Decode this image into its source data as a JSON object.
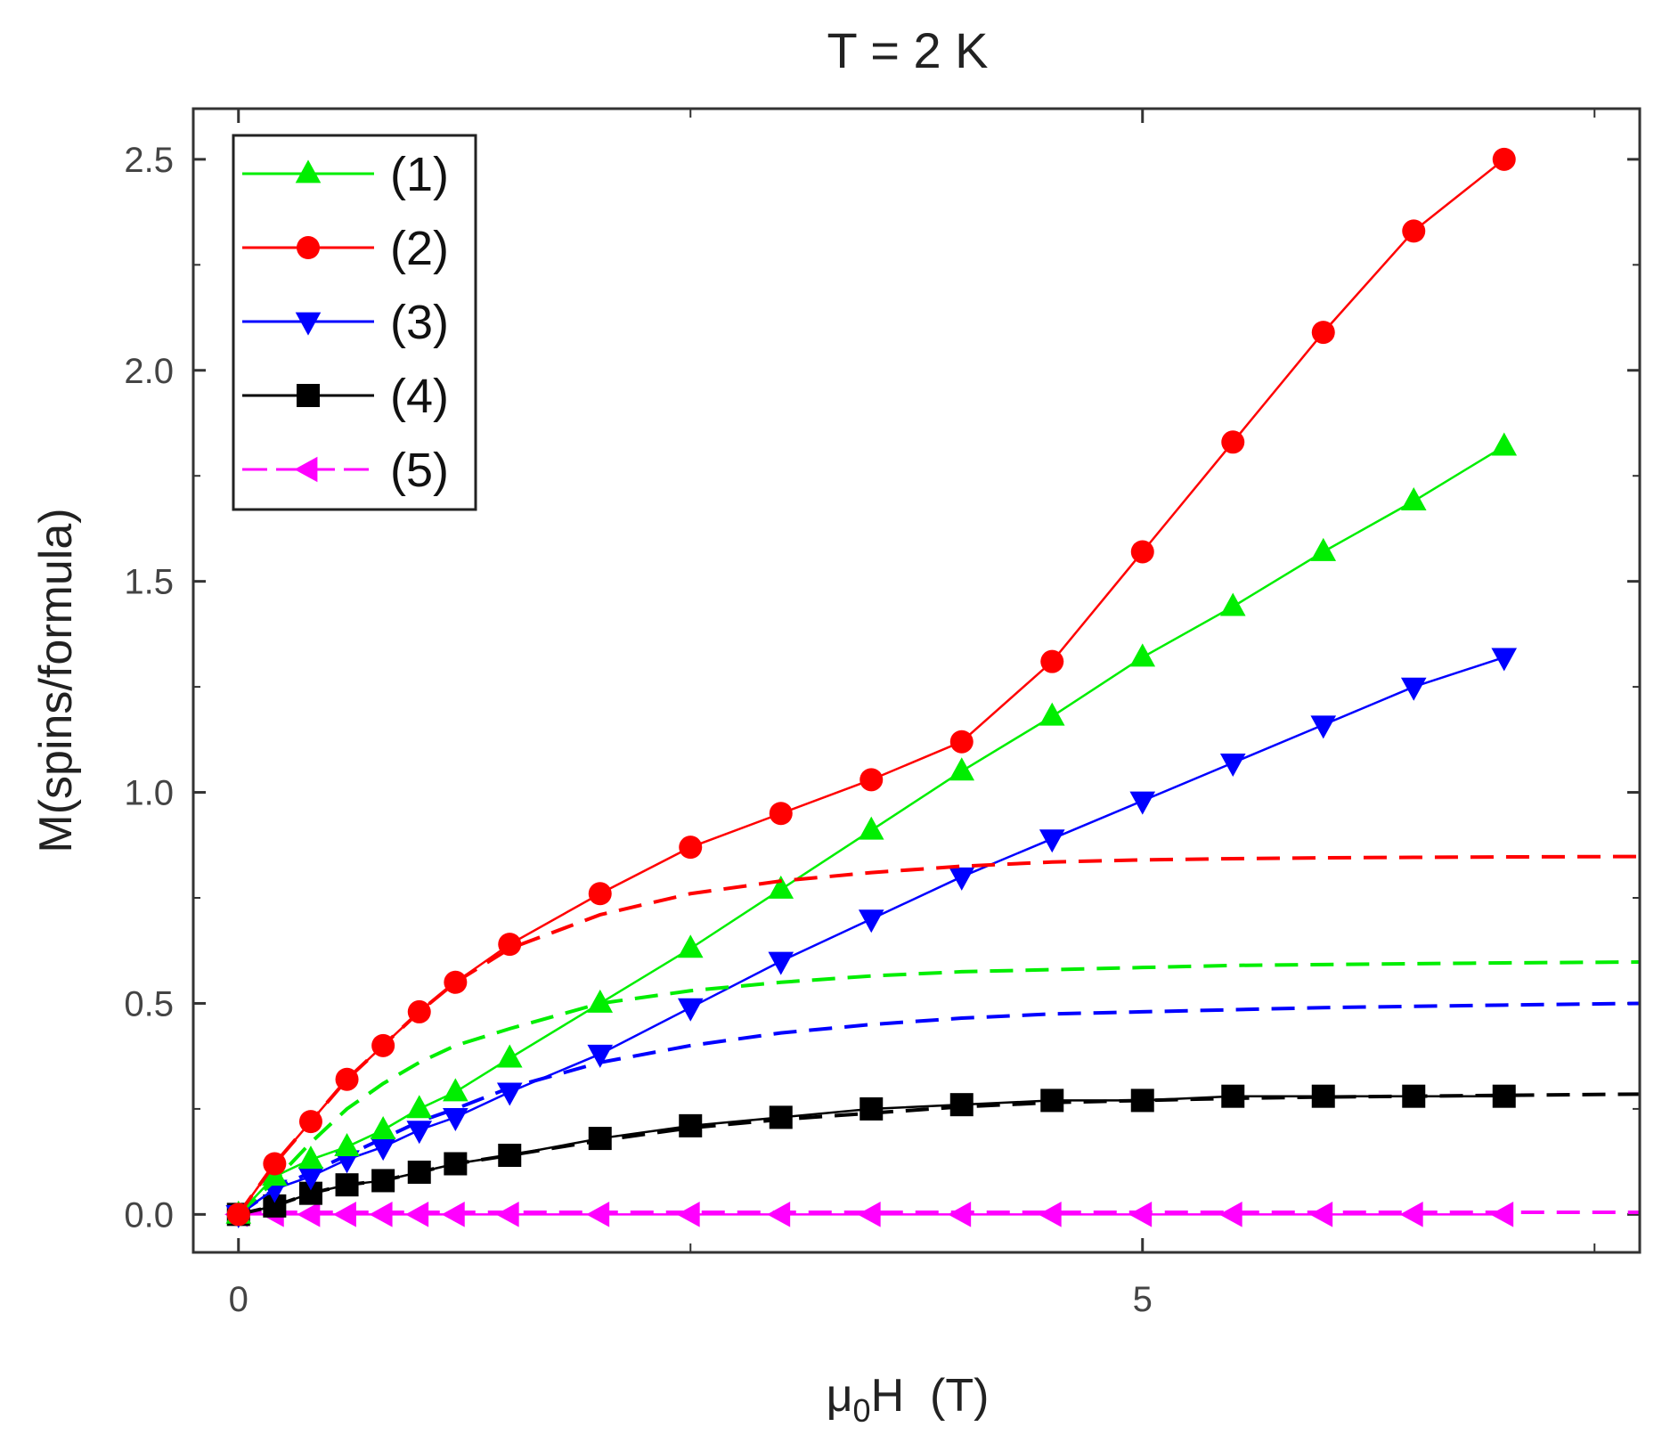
{
  "chart_data": {
    "type": "line",
    "title": "T = 2 K",
    "xlabel_main": "μ",
    "xlabel_sub": "0",
    "xlabel_rest": "H  (T)",
    "ylabel": "M(spins/formula)",
    "xlim": [
      -0.25,
      7.75
    ],
    "ylim": [
      -0.09,
      2.62
    ],
    "xticks": [
      0,
      5
    ],
    "xtick_labels": [
      "0",
      "5"
    ],
    "xminor": [
      0,
      2.5,
      5,
      7.5
    ],
    "yticks": [
      0.0,
      0.5,
      1.0,
      1.5,
      2.0,
      2.5
    ],
    "ytick_labels": [
      "0.0",
      "0.5",
      "1.0",
      "1.5",
      "2.0",
      "2.5"
    ],
    "legend_position": "top-left",
    "series": [
      {
        "name": "(1)",
        "color": "#00ee00",
        "marker": "triangle-up",
        "x": [
          0.0,
          0.2,
          0.4,
          0.6,
          0.8,
          1.0,
          1.2,
          1.5,
          2.0,
          2.5,
          3.0,
          3.5,
          4.0,
          4.5,
          5.0,
          5.5,
          6.0,
          6.5,
          7.0
        ],
        "y": [
          0.0,
          0.09,
          0.13,
          0.16,
          0.2,
          0.25,
          0.29,
          0.37,
          0.5,
          0.63,
          0.77,
          0.91,
          1.05,
          1.18,
          1.32,
          1.44,
          1.57,
          1.69,
          1.82
        ],
        "fit_x": [
          0.0,
          0.2,
          0.4,
          0.6,
          0.8,
          1.0,
          1.2,
          1.5,
          2.0,
          2.5,
          3.0,
          3.5,
          4.0,
          4.5,
          5.0,
          5.5,
          6.0,
          6.5,
          7.0,
          7.75
        ],
        "fit_y": [
          0.0,
          0.08,
          0.17,
          0.25,
          0.31,
          0.36,
          0.4,
          0.44,
          0.5,
          0.53,
          0.55,
          0.565,
          0.575,
          0.58,
          0.585,
          0.59,
          0.592,
          0.594,
          0.596,
          0.598
        ]
      },
      {
        "name": "(2)",
        "color": "#ff0000",
        "marker": "circle",
        "x": [
          0.0,
          0.2,
          0.4,
          0.6,
          0.8,
          1.0,
          1.2,
          1.5,
          2.0,
          2.5,
          3.0,
          3.5,
          4.0,
          4.5,
          5.0,
          5.5,
          6.0,
          6.5,
          7.0
        ],
        "y": [
          0.0,
          0.12,
          0.22,
          0.32,
          0.4,
          0.48,
          0.55,
          0.64,
          0.76,
          0.87,
          0.95,
          1.03,
          1.12,
          1.31,
          1.57,
          1.83,
          2.09,
          2.33,
          2.5
        ],
        "fit_x": [
          0.0,
          0.2,
          0.4,
          0.6,
          0.8,
          1.0,
          1.2,
          1.5,
          2.0,
          2.5,
          3.0,
          3.5,
          4.0,
          4.5,
          5.0,
          5.5,
          6.0,
          6.5,
          7.0,
          7.75
        ],
        "fit_y": [
          0.0,
          0.12,
          0.22,
          0.32,
          0.4,
          0.48,
          0.55,
          0.63,
          0.71,
          0.76,
          0.79,
          0.81,
          0.825,
          0.835,
          0.84,
          0.843,
          0.845,
          0.846,
          0.847,
          0.848
        ]
      },
      {
        "name": "(3)",
        "color": "#0000ff",
        "marker": "triangle-down",
        "x": [
          0.0,
          0.2,
          0.4,
          0.6,
          0.8,
          1.0,
          1.2,
          1.5,
          2.0,
          2.5,
          3.0,
          3.5,
          4.0,
          4.5,
          5.0,
          5.5,
          6.0,
          6.5,
          7.0
        ],
        "y": [
          0.0,
          0.06,
          0.09,
          0.13,
          0.16,
          0.2,
          0.23,
          0.29,
          0.38,
          0.49,
          0.6,
          0.7,
          0.8,
          0.89,
          0.98,
          1.07,
          1.16,
          1.25,
          1.32
        ],
        "fit_x": [
          0.0,
          0.2,
          0.4,
          0.6,
          0.8,
          1.0,
          1.2,
          1.5,
          2.0,
          2.5,
          3.0,
          3.5,
          4.0,
          4.5,
          5.0,
          5.5,
          6.0,
          6.5,
          7.0,
          7.75
        ],
        "fit_y": [
          0.0,
          0.06,
          0.1,
          0.14,
          0.18,
          0.22,
          0.25,
          0.3,
          0.36,
          0.4,
          0.43,
          0.45,
          0.465,
          0.475,
          0.48,
          0.485,
          0.49,
          0.493,
          0.496,
          0.5
        ]
      },
      {
        "name": "(4)",
        "color": "#000000",
        "marker": "square",
        "x": [
          0.0,
          0.2,
          0.4,
          0.6,
          0.8,
          1.0,
          1.2,
          1.5,
          2.0,
          2.5,
          3.0,
          3.5,
          4.0,
          4.5,
          5.0,
          5.5,
          6.0,
          6.5,
          7.0
        ],
        "y": [
          0.0,
          0.02,
          0.05,
          0.07,
          0.08,
          0.1,
          0.12,
          0.14,
          0.18,
          0.21,
          0.23,
          0.25,
          0.26,
          0.27,
          0.27,
          0.28,
          0.28,
          0.28,
          0.28
        ],
        "fit_x": [
          0.0,
          0.2,
          0.4,
          0.6,
          0.8,
          1.0,
          1.2,
          1.5,
          2.0,
          2.5,
          3.0,
          3.5,
          4.0,
          4.5,
          5.0,
          5.5,
          6.0,
          6.5,
          7.0,
          7.75
        ],
        "fit_y": [
          0.0,
          0.02,
          0.05,
          0.07,
          0.08,
          0.1,
          0.12,
          0.14,
          0.175,
          0.205,
          0.225,
          0.24,
          0.255,
          0.265,
          0.27,
          0.275,
          0.278,
          0.28,
          0.282,
          0.285
        ]
      },
      {
        "name": "(5)",
        "color": "#ff00ff",
        "marker": "triangle-left",
        "x": [
          0.0,
          0.2,
          0.4,
          0.6,
          0.8,
          1.0,
          1.2,
          1.5,
          2.0,
          2.5,
          3.0,
          3.5,
          4.0,
          4.5,
          5.0,
          5.5,
          6.0,
          6.5,
          7.0
        ],
        "y": [
          0.0,
          0.0,
          0.0,
          0.0,
          0.0,
          0.0,
          0.0,
          0.0,
          0.0,
          0.0,
          0.0,
          0.0,
          0.0,
          0.0,
          0.0,
          0.0,
          0.0,
          0.0,
          0.0
        ],
        "fit_x": [
          0.0,
          7.75
        ],
        "fit_y": [
          0.005,
          0.005
        ]
      }
    ]
  }
}
